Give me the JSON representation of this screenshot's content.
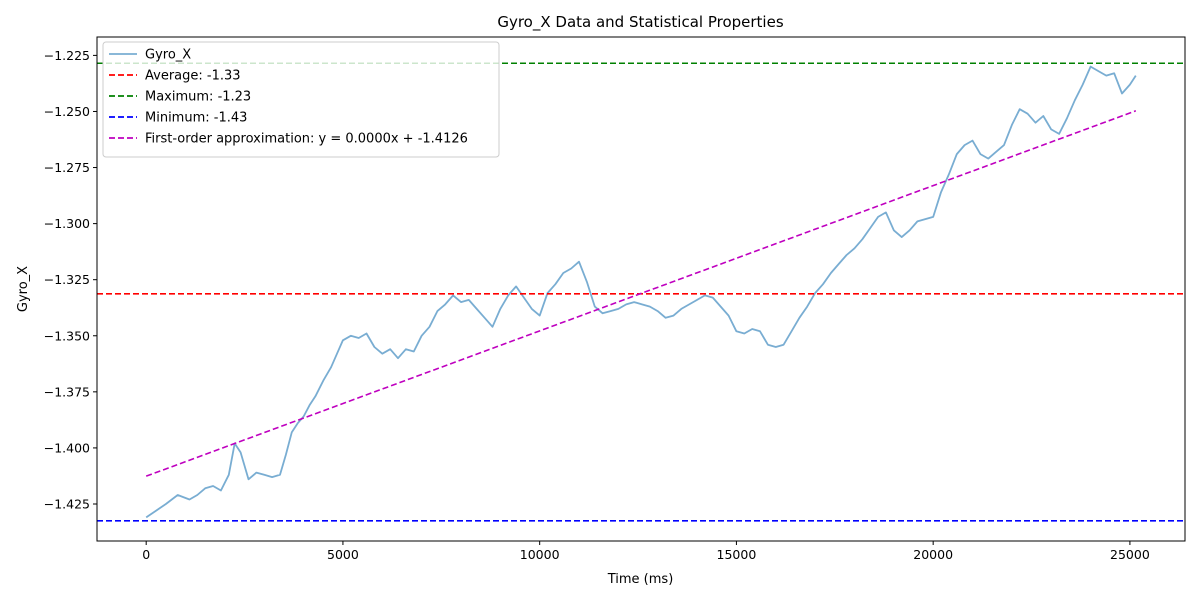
{
  "chart_data": {
    "type": "line",
    "title": "Gyro_X Data and Statistical Properties",
    "xlabel": "Time (ms)",
    "ylabel": "Gyro_X",
    "xlim": [
      -1250,
      26400
    ],
    "ylim": [
      -1.4415,
      -1.2168
    ],
    "xticks": [
      0,
      5000,
      10000,
      15000,
      20000,
      25000
    ],
    "xtick_labels": [
      "0",
      "5000",
      "10000",
      "15000",
      "20000",
      "25000"
    ],
    "yticks": [
      -1.425,
      -1.4,
      -1.375,
      -1.35,
      -1.325,
      -1.3,
      -1.275,
      -1.25,
      -1.225
    ],
    "ytick_labels": [
      "−1.425",
      "−1.400",
      "−1.375",
      "−1.350",
      "−1.325",
      "−1.300",
      "−1.275",
      "−1.250",
      "−1.225"
    ],
    "grid": false,
    "legend_position": "top-left",
    "series": [
      {
        "name": "Gyro_X",
        "kind": "line",
        "color": "#1f77b4",
        "opacity": 0.6,
        "x": [
          0,
          250,
          500,
          800,
          1100,
          1300,
          1500,
          1700,
          1900,
          2100,
          2250,
          2400,
          2600,
          2800,
          3000,
          3200,
          3400,
          3550,
          3700,
          3850,
          4000,
          4150,
          4300,
          4500,
          4700,
          4850,
          5000,
          5200,
          5400,
          5600,
          5800,
          6000,
          6200,
          6400,
          6600,
          6800,
          7000,
          7200,
          7400,
          7600,
          7800,
          8000,
          8200,
          8400,
          8600,
          8800,
          9000,
          9200,
          9400,
          9600,
          9800,
          10000,
          10200,
          10400,
          10600,
          10800,
          11000,
          11200,
          11400,
          11600,
          11800,
          12000,
          12200,
          12400,
          12600,
          12800,
          13000,
          13200,
          13400,
          13600,
          13800,
          14000,
          14200,
          14400,
          14600,
          14800,
          15000,
          15200,
          15400,
          15600,
          15800,
          16000,
          16200,
          16400,
          16600,
          16800,
          17000,
          17200,
          17400,
          17600,
          17800,
          18000,
          18200,
          18400,
          18600,
          18800,
          19000,
          19200,
          19400,
          19600,
          19800,
          20000,
          20200,
          20400,
          20600,
          20800,
          21000,
          21200,
          21400,
          21600,
          21800,
          22000,
          22200,
          22400,
          22600,
          22800,
          23000,
          23200,
          23400,
          23600,
          23800,
          24000,
          24200,
          24400,
          24600,
          24800,
          25000,
          25150
        ],
        "y": [
          -1.431,
          -1.428,
          -1.425,
          -1.421,
          -1.423,
          -1.421,
          -1.418,
          -1.417,
          -1.419,
          -1.412,
          -1.398,
          -1.402,
          -1.414,
          -1.411,
          -1.412,
          -1.413,
          -1.412,
          -1.403,
          -1.393,
          -1.389,
          -1.386,
          -1.381,
          -1.377,
          -1.37,
          -1.364,
          -1.358,
          -1.352,
          -1.35,
          -1.351,
          -1.349,
          -1.355,
          -1.358,
          -1.356,
          -1.36,
          -1.356,
          -1.357,
          -1.35,
          -1.346,
          -1.339,
          -1.336,
          -1.332,
          -1.335,
          -1.334,
          -1.338,
          -1.342,
          -1.346,
          -1.338,
          -1.332,
          -1.328,
          -1.333,
          -1.338,
          -1.341,
          -1.331,
          -1.327,
          -1.322,
          -1.32,
          -1.317,
          -1.326,
          -1.337,
          -1.34,
          -1.339,
          -1.338,
          -1.336,
          -1.335,
          -1.336,
          -1.337,
          -1.339,
          -1.342,
          -1.341,
          -1.338,
          -1.336,
          -1.334,
          -1.332,
          -1.333,
          -1.337,
          -1.341,
          -1.348,
          -1.349,
          -1.347,
          -1.348,
          -1.354,
          -1.355,
          -1.354,
          -1.348,
          -1.342,
          -1.337,
          -1.331,
          -1.327,
          -1.322,
          -1.318,
          -1.314,
          -1.311,
          -1.307,
          -1.302,
          -1.297,
          -1.295,
          -1.303,
          -1.306,
          -1.303,
          -1.299,
          -1.298,
          -1.297,
          -1.286,
          -1.278,
          -1.269,
          -1.265,
          -1.263,
          -1.269,
          -1.271,
          -1.268,
          -1.265,
          -1.256,
          -1.249,
          -1.251,
          -1.255,
          -1.252,
          -1.258,
          -1.26,
          -1.253,
          -1.245,
          -1.238,
          -1.23,
          -1.232,
          -1.234,
          -1.233,
          -1.242,
          -1.238,
          -1.234
        ]
      },
      {
        "name": "Average: -1.33",
        "kind": "hline",
        "color": "#ff0000",
        "y": -1.3313
      },
      {
        "name": "Maximum: -1.23",
        "kind": "hline",
        "color": "#008000",
        "y": -1.2285
      },
      {
        "name": "Minimum: -1.43",
        "kind": "hline",
        "color": "#0000ff",
        "y": -1.4325
      },
      {
        "name": "First-order approximation: y = 0.0000x + -1.4126",
        "kind": "fit",
        "color": "#bf00bf",
        "x": [
          0,
          25150
        ],
        "y": [
          -1.4126,
          -1.2497
        ]
      }
    ]
  }
}
